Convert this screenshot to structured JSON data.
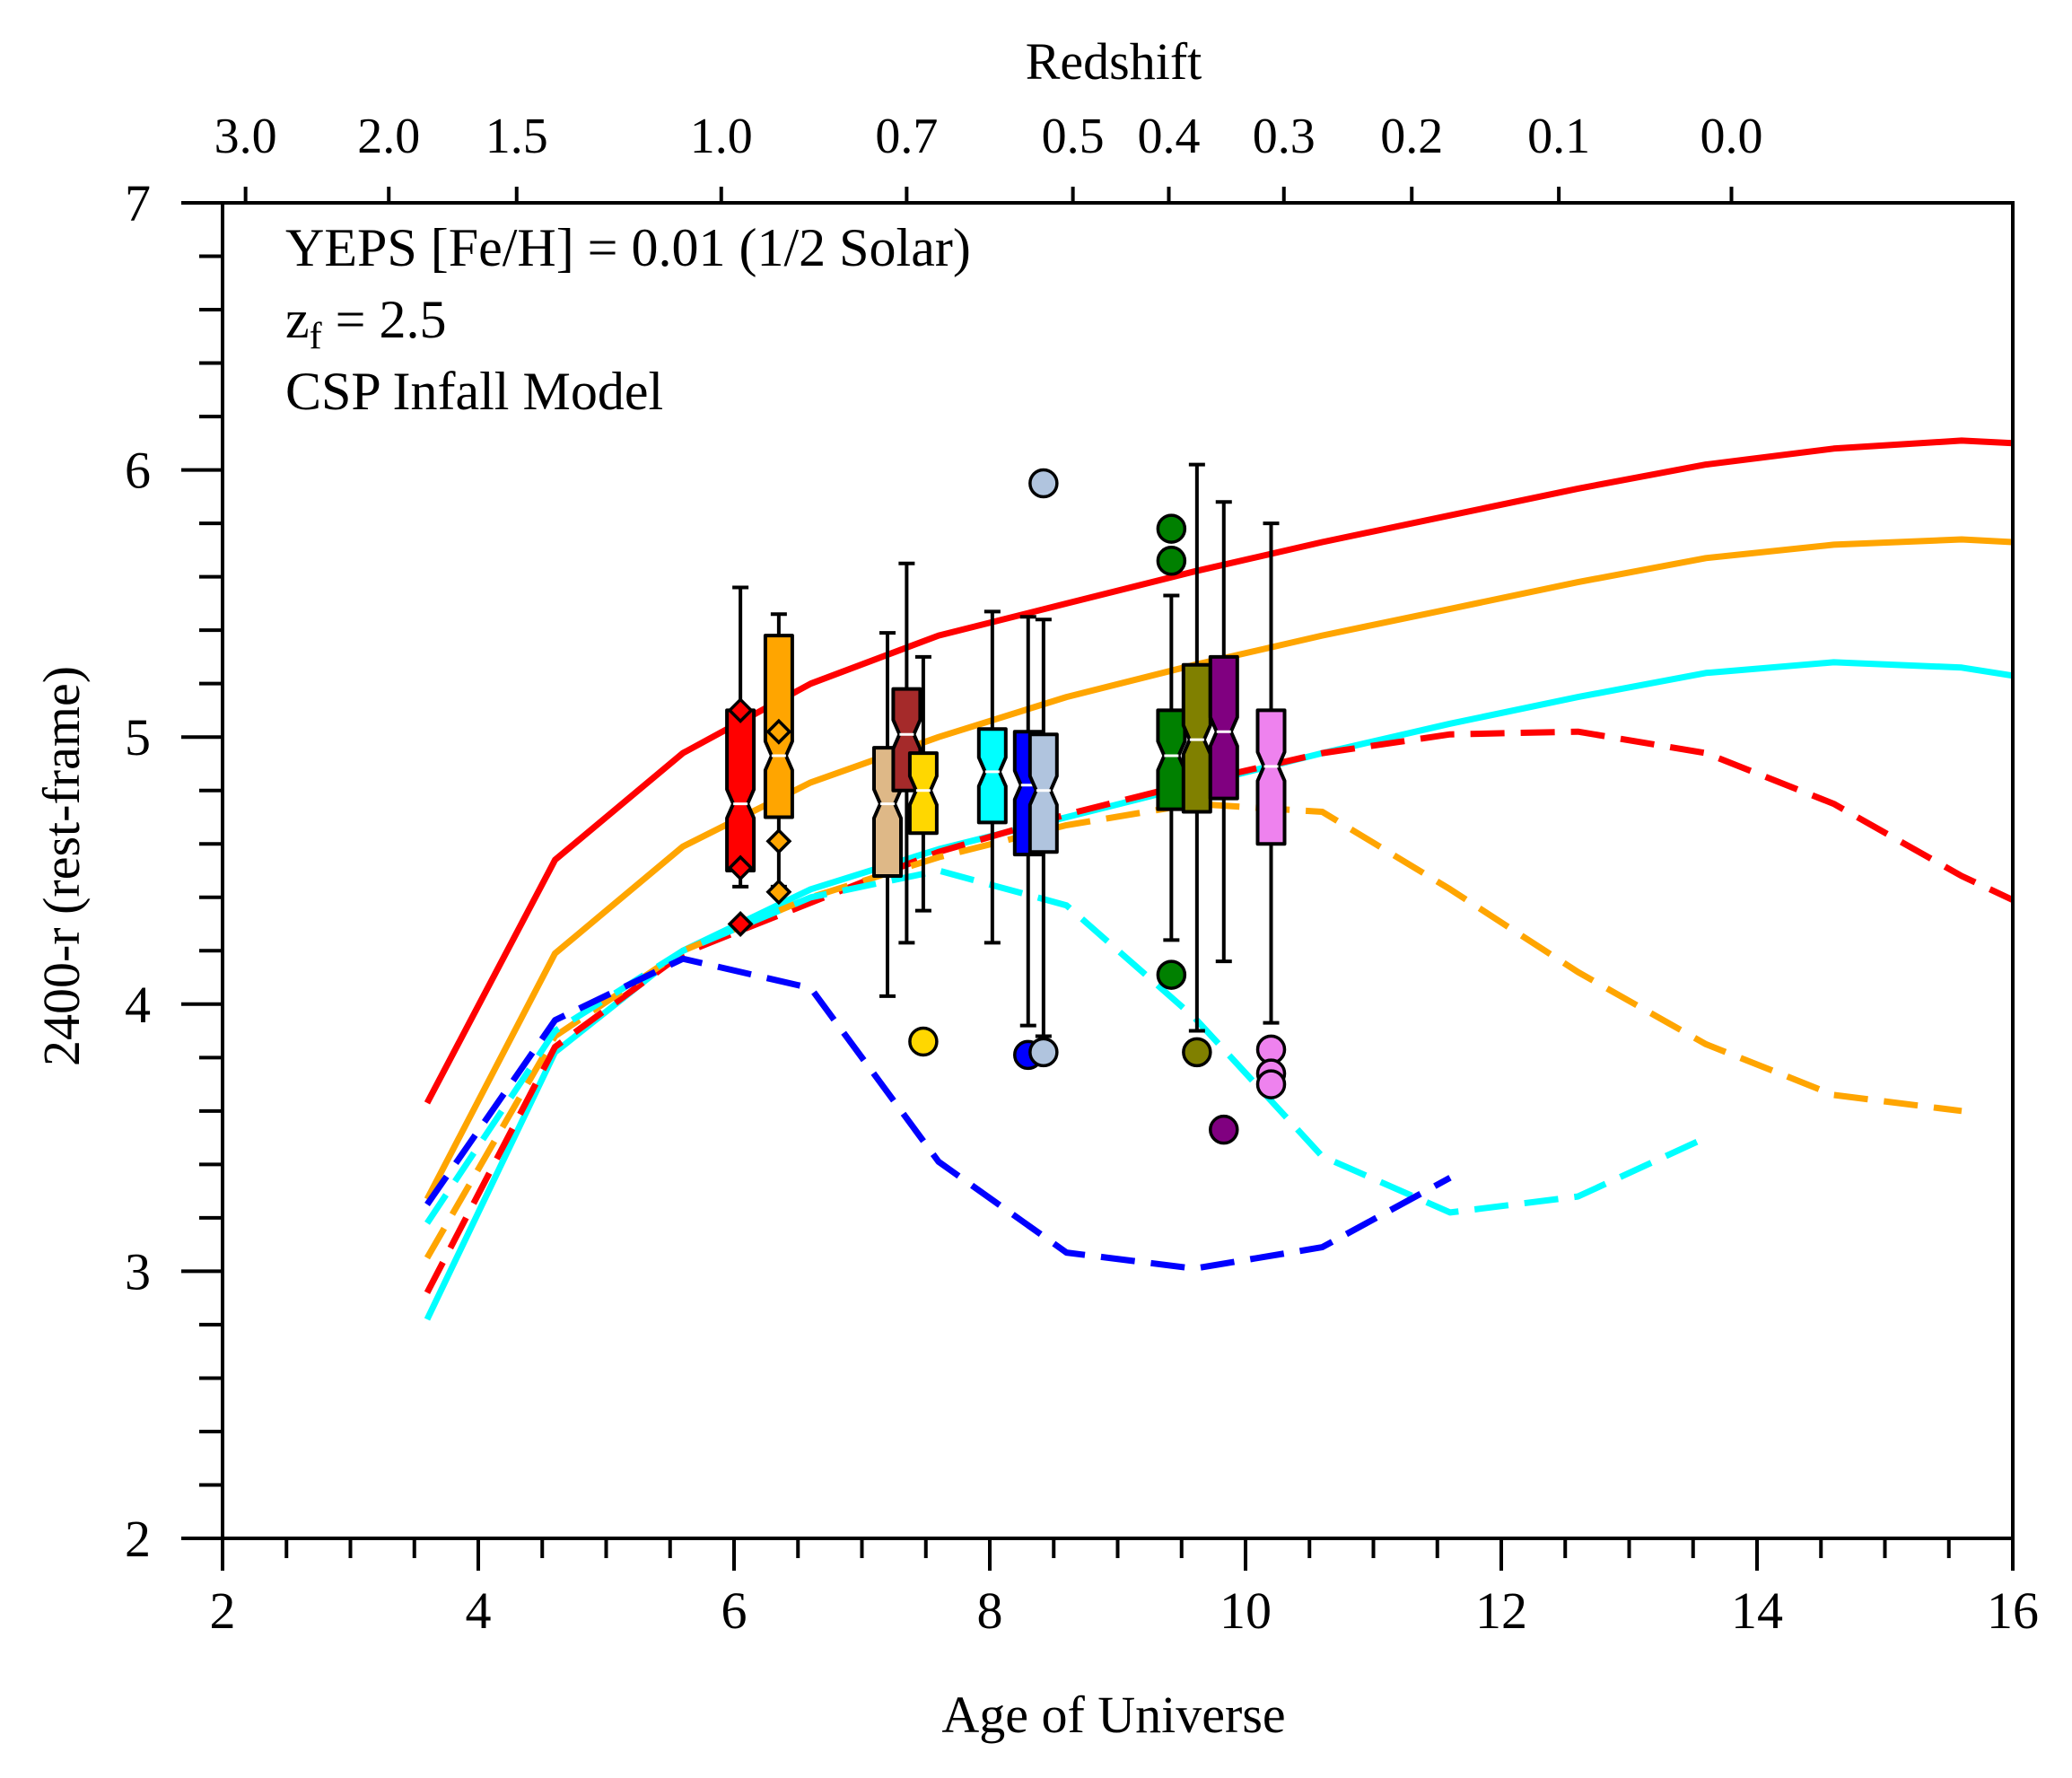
{
  "chart_data": {
    "type": "line",
    "annotations": [
      "YEPS [Fe/H] = 0.01 (1/2 Solar)",
      "z",
      "f",
      " = 2.5",
      "CSP Infall Model"
    ],
    "xlabel": "Age of Universe",
    "ylabel": "2400-r (rest-frame)",
    "top_xlabel": "Redshift",
    "xlim": [
      2,
      16
    ],
    "ylim": [
      2,
      7
    ],
    "x_ticks": [
      2,
      4,
      6,
      8,
      10,
      12,
      14,
      16
    ],
    "y_ticks": [
      2,
      3,
      4,
      5,
      6,
      7
    ],
    "top_ticks": [
      {
        "label": "3.0",
        "age": 2.18
      },
      {
        "label": "2.0",
        "age": 3.3
      },
      {
        "label": "1.5",
        "age": 4.3
      },
      {
        "label": "1.0",
        "age": 5.9
      },
      {
        "label": "0.7",
        "age": 7.35
      },
      {
        "label": "0.5",
        "age": 8.65
      },
      {
        "label": "0.4",
        "age": 9.4
      },
      {
        "label": "0.3",
        "age": 10.3
      },
      {
        "label": "0.2",
        "age": 11.3
      },
      {
        "label": "0.1",
        "age": 12.45
      },
      {
        "label": "0.0",
        "age": 13.8
      }
    ],
    "series": [
      {
        "name": "solid-red",
        "color": "#ff0000",
        "dash": false,
        "x": [
          3.6,
          4.6,
          5.6,
          6.6,
          7.6,
          8.6,
          9.6,
          10.6,
          11.6,
          12.6,
          13.6,
          14.6,
          15.6,
          16.0
        ],
        "y": [
          3.63,
          4.54,
          4.94,
          5.2,
          5.38,
          5.5,
          5.62,
          5.73,
          5.83,
          5.93,
          6.02,
          6.08,
          6.11,
          6.1
        ]
      },
      {
        "name": "solid-orange",
        "color": "#ffa500",
        "dash": false,
        "x": [
          3.6,
          4.6,
          5.6,
          6.6,
          7.6,
          8.6,
          9.6,
          10.6,
          11.6,
          12.6,
          13.6,
          14.6,
          15.6,
          16.0
        ],
        "y": [
          3.27,
          4.19,
          4.59,
          4.83,
          5.0,
          5.15,
          5.27,
          5.38,
          5.48,
          5.58,
          5.67,
          5.72,
          5.74,
          5.73
        ]
      },
      {
        "name": "solid-cyan",
        "color": "#00ffff",
        "dash": false,
        "x": [
          3.6,
          4.6,
          5.6,
          6.6,
          7.6,
          8.6,
          9.6,
          10.6,
          11.6,
          12.6,
          13.6,
          14.6,
          15.6,
          16.0
        ],
        "y": [
          2.82,
          3.82,
          4.2,
          4.43,
          4.58,
          4.7,
          4.82,
          4.94,
          5.05,
          5.15,
          5.24,
          5.28,
          5.26,
          5.23
        ]
      },
      {
        "name": "dashed-red",
        "color": "#ff0000",
        "dash": true,
        "x": [
          3.6,
          4.6,
          5.6,
          6.6,
          7.6,
          8.6,
          9.6,
          10.6,
          11.6,
          12.6,
          13.6,
          14.6,
          15.6,
          16.0
        ],
        "y": [
          2.92,
          3.84,
          4.19,
          4.38,
          4.57,
          4.71,
          4.83,
          4.94,
          5.01,
          5.02,
          4.94,
          4.75,
          4.48,
          4.39
        ]
      },
      {
        "name": "dashed-orange",
        "color": "#ffa500",
        "dash": true,
        "x": [
          3.6,
          4.6,
          5.6,
          6.6,
          7.6,
          8.6,
          9.6,
          10.6,
          11.6,
          12.6,
          13.6,
          14.6,
          15.6
        ],
        "y": [
          3.05,
          3.88,
          4.2,
          4.4,
          4.55,
          4.67,
          4.75,
          4.72,
          4.43,
          4.12,
          3.85,
          3.66,
          3.6
        ]
      },
      {
        "name": "dashed-cyan",
        "color": "#00ffff",
        "dash": true,
        "x": [
          3.6,
          4.6,
          5.6,
          6.6,
          7.6,
          8.6,
          9.6,
          10.6,
          11.6,
          12.6,
          13.6
        ],
        "y": [
          3.18,
          3.9,
          4.2,
          4.4,
          4.5,
          4.37,
          3.95,
          3.43,
          3.22,
          3.28,
          3.5
        ]
      },
      {
        "name": "dashed-blue",
        "color": "#0000ff",
        "dash": true,
        "x": [
          3.6,
          4.6,
          5.6,
          6.6,
          7.6,
          8.6,
          9.6,
          10.6,
          11.6
        ],
        "y": [
          3.25,
          3.94,
          4.17,
          4.06,
          3.41,
          3.07,
          3.01,
          3.09,
          3.35
        ]
      }
    ],
    "boxes": [
      {
        "age": 6.05,
        "color": "#ff0000",
        "q1": 4.5,
        "median": 4.75,
        "q3": 5.1,
        "whisker_low": 4.44,
        "whisker_high": 5.56,
        "outliers": [
          5.1,
          4.51,
          4.3
        ],
        "marker": "diamond"
      },
      {
        "age": 6.35,
        "color": "#ffa500",
        "q1": 4.7,
        "median": 4.93,
        "q3": 5.38,
        "whisker_low": 4.44,
        "whisker_high": 5.46,
        "outliers": [
          5.02,
          4.61,
          4.42
        ],
        "marker": "diamond"
      },
      {
        "age": 7.2,
        "color": "#deb887",
        "q1": 4.48,
        "median": 4.75,
        "q3": 4.96,
        "whisker_low": 4.03,
        "whisker_high": 5.39,
        "outliers": [],
        "marker": "circle"
      },
      {
        "age": 7.35,
        "color": "#a52a2a",
        "q1": 4.8,
        "median": 5.01,
        "q3": 5.18,
        "whisker_low": 4.23,
        "whisker_high": 5.65,
        "outliers": [],
        "marker": "circle"
      },
      {
        "age": 7.48,
        "color": "#ffd700",
        "q1": 4.64,
        "median": 4.8,
        "q3": 4.94,
        "whisker_low": 4.35,
        "whisker_high": 5.3,
        "outliers": [
          3.86
        ],
        "marker": "circle"
      },
      {
        "age": 8.02,
        "color": "#00ffff",
        "q1": 4.68,
        "median": 4.87,
        "q3": 5.03,
        "whisker_low": 4.23,
        "whisker_high": 5.47,
        "outliers": [],
        "marker": "circle"
      },
      {
        "age": 8.3,
        "color": "#0000ff",
        "q1": 4.56,
        "median": 4.82,
        "q3": 5.02,
        "whisker_low": 3.92,
        "whisker_high": 5.45,
        "outliers": [
          3.81
        ],
        "marker": "circle"
      },
      {
        "age": 8.42,
        "color": "#b0c4de",
        "q1": 4.57,
        "median": 4.8,
        "q3": 5.01,
        "whisker_low": 3.88,
        "whisker_high": 5.44,
        "outliers": [
          5.95,
          3.82
        ],
        "marker": "circle"
      },
      {
        "age": 9.42,
        "color": "#008000",
        "q1": 4.73,
        "median": 4.93,
        "q3": 5.1,
        "whisker_low": 4.24,
        "whisker_high": 5.53,
        "outliers": [
          5.78,
          5.66,
          4.11
        ],
        "marker": "circle"
      },
      {
        "age": 9.62,
        "color": "#808000",
        "q1": 4.72,
        "median": 4.99,
        "q3": 5.27,
        "whisker_low": 3.9,
        "whisker_high": 6.02,
        "outliers": [
          3.82
        ],
        "marker": "circle"
      },
      {
        "age": 9.83,
        "color": "#800080",
        "q1": 4.77,
        "median": 5.02,
        "q3": 5.3,
        "whisker_low": 4.16,
        "whisker_high": 5.88,
        "outliers": [
          3.53
        ],
        "marker": "circle"
      },
      {
        "age": 10.2,
        "color": "#ee82ee",
        "q1": 4.6,
        "median": 4.89,
        "q3": 5.1,
        "whisker_low": 3.93,
        "whisker_high": 5.8,
        "outliers": [
          3.83,
          3.74,
          3.7
        ],
        "marker": "circle"
      }
    ]
  }
}
